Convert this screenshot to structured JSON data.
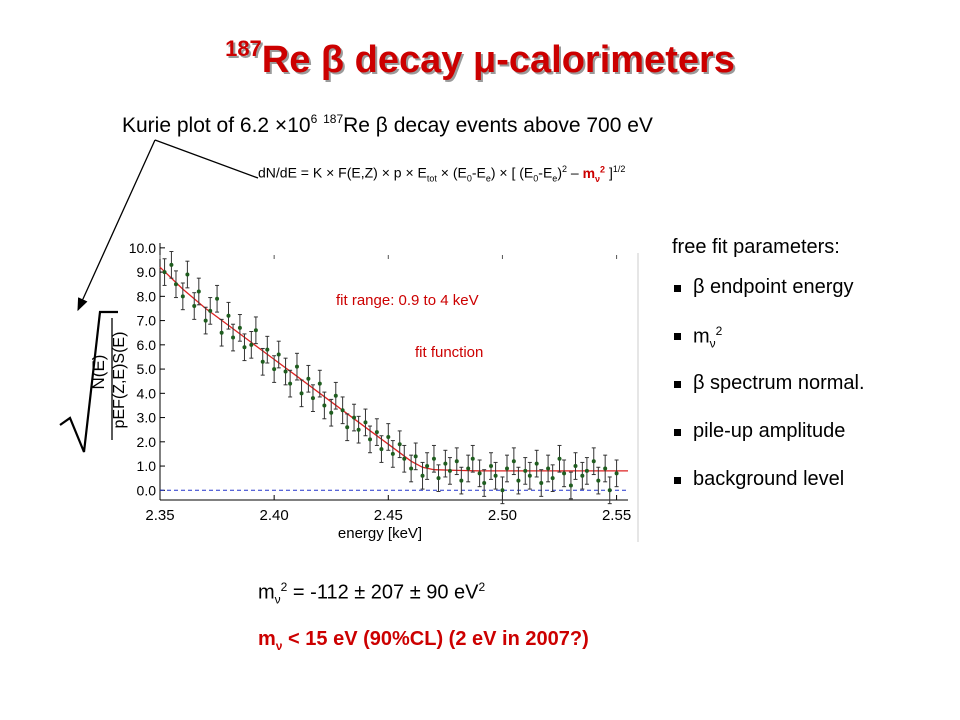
{
  "title": {
    "isotope_mass": "187",
    "text": "Re β decay μ-calorimeters"
  },
  "subtitle": {
    "prefix": "Kurie plot of 6.2 ×10",
    "exponent": "6",
    "isotope_mass": "187",
    "suffix": "Re β decay events above 700 eV"
  },
  "formula": {
    "part1": "dN/dE = K × F(E,Z) × p × E",
    "sub_tot": "tot",
    "part2": " × (E",
    "sub_0a": "0",
    "part3": "-E",
    "sub_ea": "e",
    "part4": ") × [ (E",
    "sub_0b": "0",
    "part5": "-E",
    "sub_eb": "e",
    "part6": ")",
    "sup_2a": "2",
    "part7": " – ",
    "mnu": "m",
    "mnu_sub": "ν",
    "mnu_sup": "2",
    "part8": " ]",
    "sup_half": "1/2"
  },
  "params": {
    "title": "free fit parameters:",
    "items": [
      "β endpoint energy",
      "m",
      "β spectrum normal.",
      "pile-up amplitude",
      "background level"
    ],
    "mnu_sub": "ν",
    "mnu_sup": "2"
  },
  "results": {
    "line1_m": "m",
    "line1_sub": "ν",
    "line1_sup": "2",
    "line1_value": " = -112 ± 207 ± 90 eV",
    "line1_unit_sup": "2",
    "line2_m": "m",
    "line2_sub": "ν",
    "line2_value": "  < 15 eV (90%CL)  (2 eV in 2007?)"
  },
  "colors": {
    "title": "#cc0000",
    "fit_curve": "#dd2222",
    "background_line": "#2233cc",
    "data_point": "#1f5d1f",
    "annotation": "#cc0000"
  },
  "chart_data": {
    "type": "scatter",
    "xlabel": "energy [keV]",
    "ylabel_numerator": "N(E)",
    "ylabel_denominator": "pEF(Z,E)S(E)",
    "xlim": [
      2.35,
      2.555
    ],
    "ylim": [
      -0.4,
      10.2
    ],
    "xticks": [
      "2.35",
      "2.40",
      "2.45",
      "2.50",
      "2.55"
    ],
    "yticks": [
      "0.0",
      "1.0",
      "2.0",
      "3.0",
      "4.0",
      "5.0",
      "6.0",
      "7.0",
      "8.0",
      "9.0",
      "10.0"
    ],
    "annotations": [
      "fit range: 0.9 to 4 keV",
      "fit function"
    ],
    "background_level": 0.0,
    "fit_curve": {
      "name": "fit function",
      "x": [
        2.35,
        2.36,
        2.37,
        2.38,
        2.39,
        2.4,
        2.41,
        2.42,
        2.43,
        2.44,
        2.45,
        2.46,
        2.465,
        2.47,
        2.48,
        2.49,
        2.5,
        2.52,
        2.555
      ],
      "y": [
        9.2,
        8.3,
        7.5,
        6.8,
        6.1,
        5.4,
        4.7,
        4.0,
        3.3,
        2.6,
        1.9,
        1.2,
        0.95,
        0.85,
        0.82,
        0.8,
        0.8,
        0.8,
        0.8
      ]
    },
    "points": {
      "x": [
        2.352,
        2.355,
        2.357,
        2.36,
        2.362,
        2.365,
        2.367,
        2.37,
        2.372,
        2.375,
        2.377,
        2.38,
        2.382,
        2.385,
        2.387,
        2.39,
        2.392,
        2.395,
        2.397,
        2.4,
        2.402,
        2.405,
        2.407,
        2.41,
        2.412,
        2.415,
        2.417,
        2.42,
        2.422,
        2.425,
        2.427,
        2.43,
        2.432,
        2.435,
        2.437,
        2.44,
        2.442,
        2.445,
        2.447,
        2.45,
        2.452,
        2.455,
        2.457,
        2.46,
        2.462,
        2.465,
        2.467,
        2.47,
        2.472,
        2.475,
        2.477,
        2.48,
        2.482,
        2.485,
        2.487,
        2.49,
        2.492,
        2.495,
        2.497,
        2.5,
        2.502,
        2.505,
        2.507,
        2.51,
        2.512,
        2.515,
        2.517,
        2.52,
        2.522,
        2.525,
        2.527,
        2.53,
        2.532,
        2.535,
        2.537,
        2.54,
        2.542,
        2.545,
        2.547,
        2.55
      ],
      "y": [
        9.0,
        9.3,
        8.5,
        8.0,
        8.9,
        7.6,
        8.2,
        7.0,
        7.4,
        7.9,
        6.5,
        7.2,
        6.3,
        6.7,
        5.9,
        6.0,
        6.6,
        5.3,
        5.8,
        5.0,
        5.6,
        4.9,
        4.4,
        5.1,
        4.0,
        4.6,
        3.8,
        4.4,
        3.5,
        3.2,
        3.9,
        3.3,
        2.6,
        3.0,
        2.5,
        2.8,
        2.1,
        2.4,
        1.7,
        2.2,
        1.5,
        1.9,
        1.3,
        0.9,
        1.4,
        0.6,
        1.0,
        1.3,
        0.5,
        1.1,
        0.8,
        1.2,
        0.4,
        0.9,
        1.3,
        0.7,
        0.3,
        1.0,
        0.6,
        0.0,
        0.9,
        1.2,
        0.4,
        0.8,
        0.6,
        1.1,
        0.3,
        0.9,
        0.5,
        1.3,
        0.7,
        0.2,
        1.0,
        0.6,
        0.8,
        1.2,
        0.4,
        0.9,
        0.0,
        0.7
      ],
      "err": 0.55
    }
  }
}
